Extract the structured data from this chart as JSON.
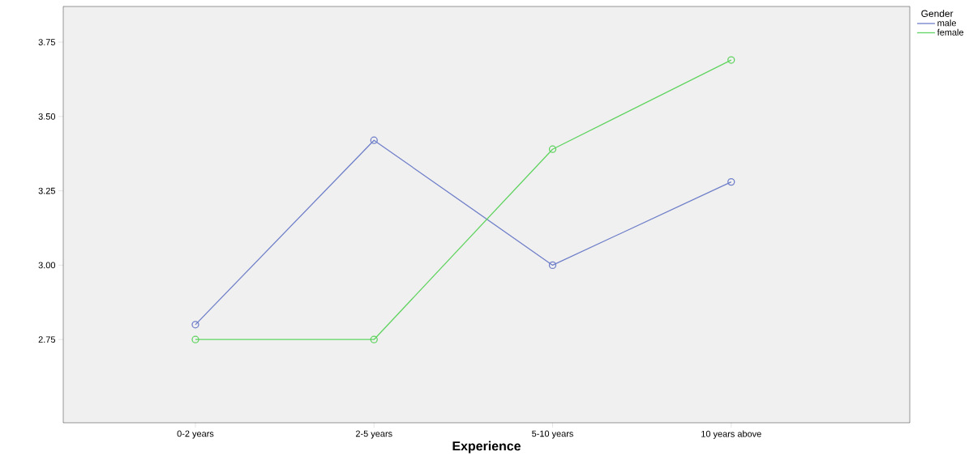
{
  "chart_data": {
    "type": "line",
    "xlabel": "Experience",
    "legend_title": "Gender",
    "categories": [
      "0-2 years",
      "2-5 years",
      "5-10 years",
      "10 years above"
    ],
    "series": [
      {
        "name": "male",
        "color": "#6f7fc9",
        "values": [
          2.8,
          3.42,
          3.0,
          3.28
        ]
      },
      {
        "name": "female",
        "color": "#5fd35f",
        "values": [
          2.75,
          2.75,
          3.39,
          3.69
        ]
      }
    ],
    "ylim": [
      2.47,
      3.87
    ],
    "yticks": [
      {
        "value": 2.75,
        "label": "2.75"
      },
      {
        "value": 3.0,
        "label": "3.00"
      },
      {
        "value": 3.25,
        "label": "3.25"
      },
      {
        "value": 3.5,
        "label": "3.50"
      },
      {
        "value": 3.75,
        "label": "3.75"
      }
    ],
    "grid": false,
    "legend": "top right",
    "marker": "circle",
    "line_style": "solid"
  }
}
